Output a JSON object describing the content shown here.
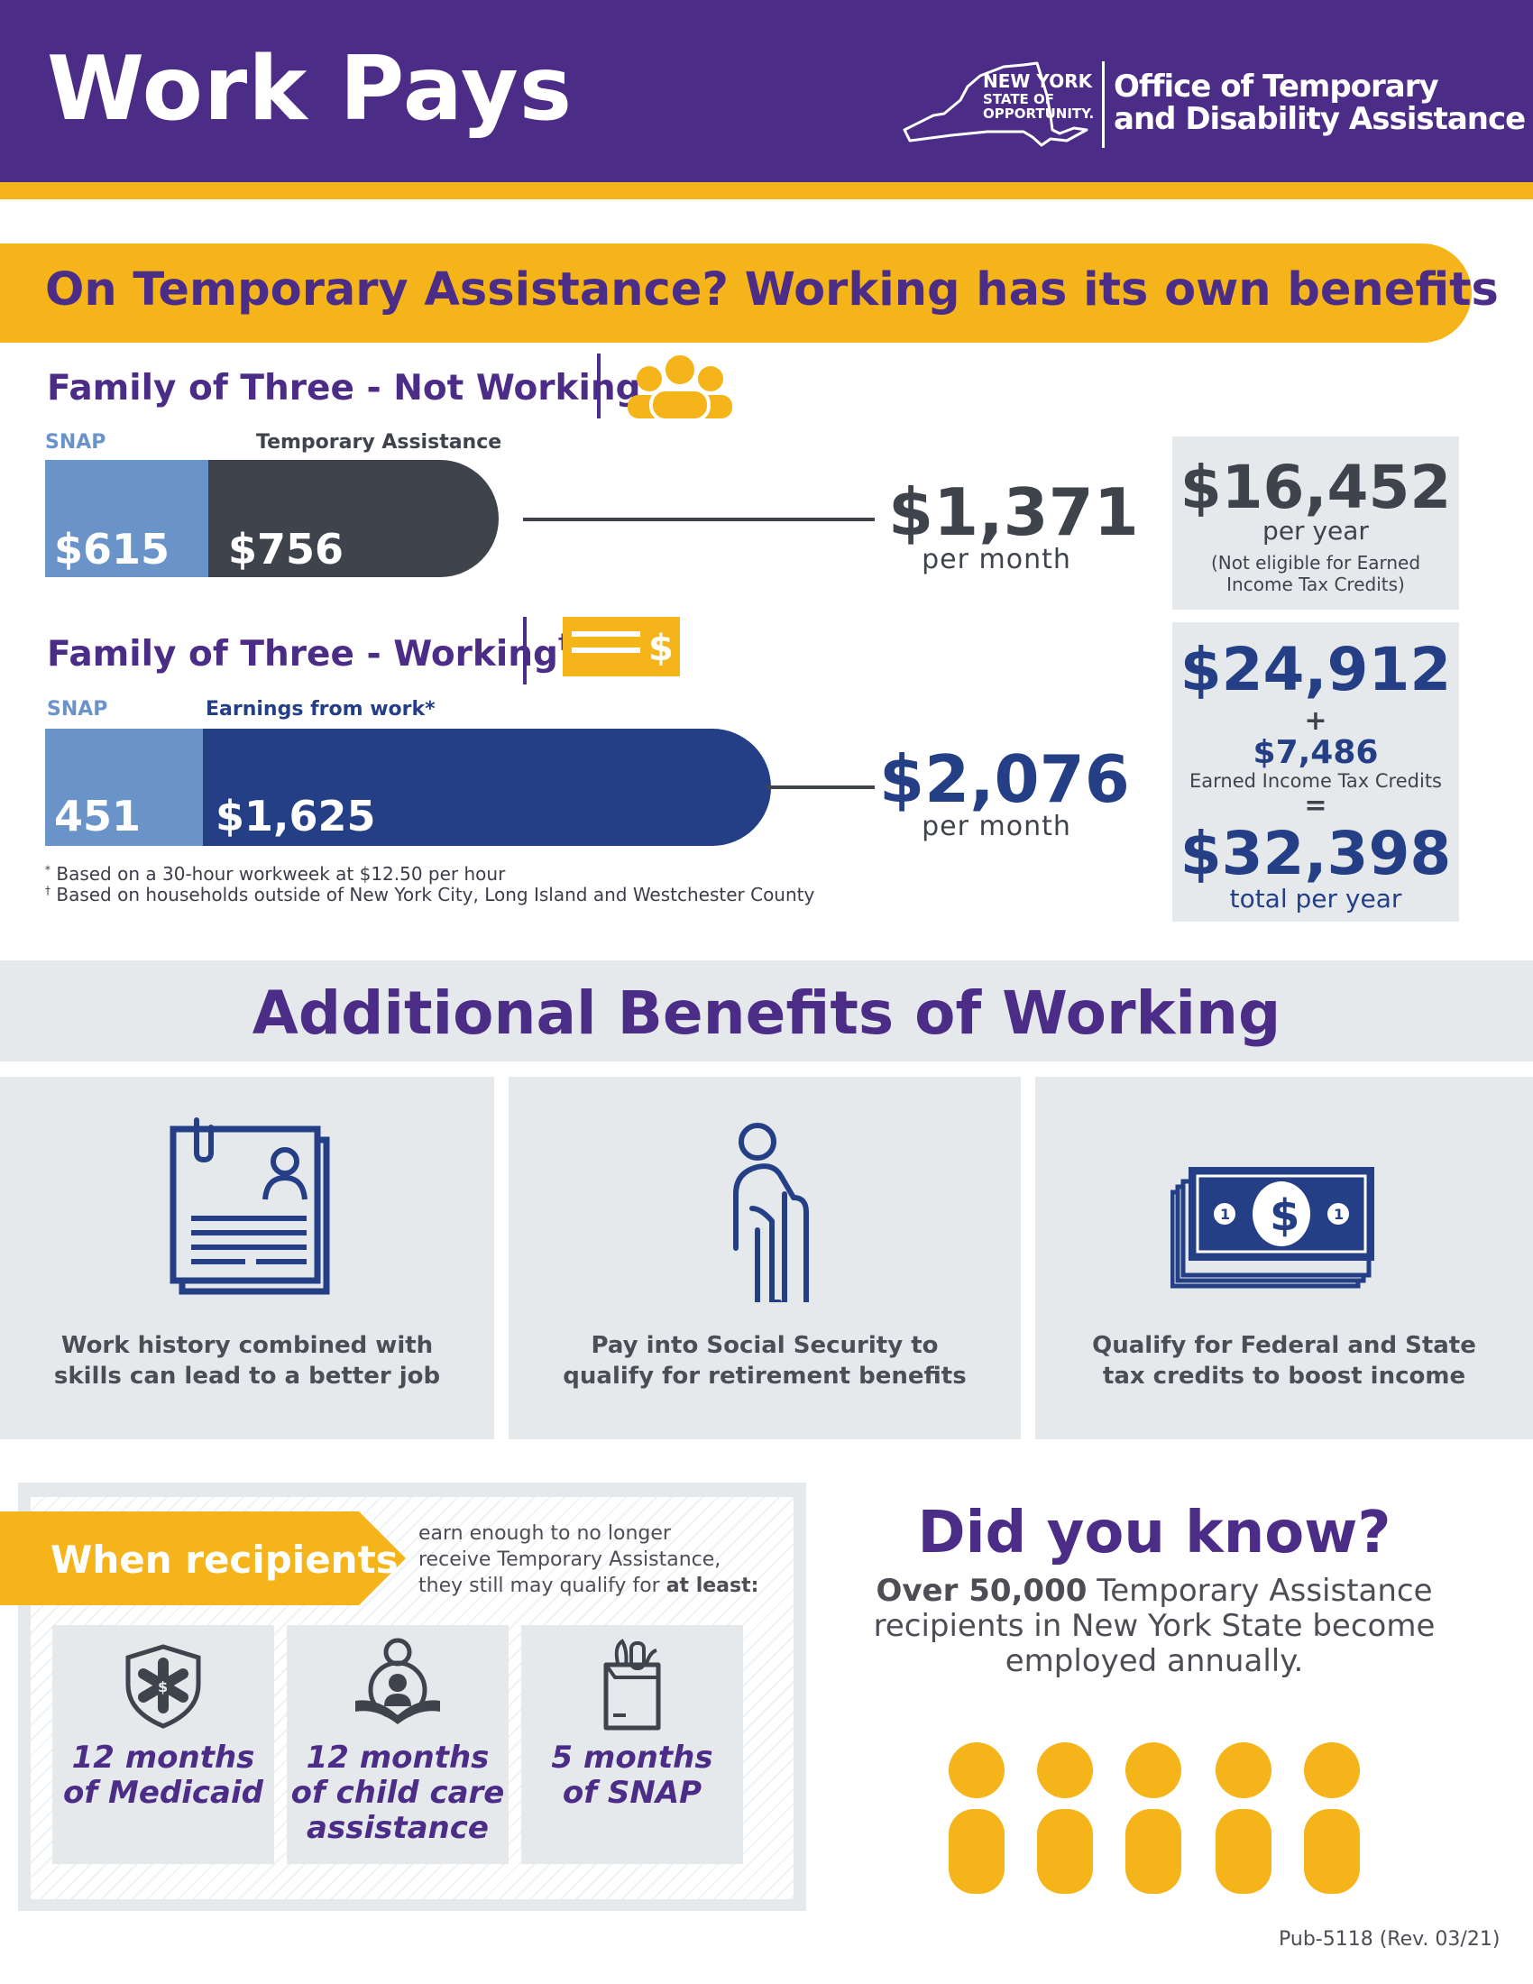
{
  "header": {
    "title": "Work Pays",
    "ny_line1": "NEW YORK",
    "ny_line2": "STATE OF",
    "ny_line3": "OPPORTUNITY.",
    "agency_line1": "Office of Temporary",
    "agency_line2": "and Disability Assistance"
  },
  "banner": {
    "text": "On Temporary Assistance? Working has its own benefits"
  },
  "not_working": {
    "title": "Family of Three - Not Working",
    "mark": "†",
    "icon": "family-icon",
    "snap_label": "SNAP",
    "ta_label": "Temporary Assistance",
    "snap_value": "$615",
    "ta_value": "$756",
    "monthly_total": "$1,371",
    "per_month": "per month",
    "snap_amount": 615,
    "ta_amount": 756
  },
  "working": {
    "title": "Family of Three - Working",
    "mark": "†",
    "icon": "paycheck-icon",
    "snap_label": "SNAP",
    "earn_label": "Earnings from work*",
    "snap_value": "451",
    "earn_value": "$1,625",
    "monthly_total": "$2,076",
    "per_month": "per month",
    "snap_amount": 451,
    "earn_amount": 1625
  },
  "footnotes": {
    "star_mark": "*",
    "star": "Based on a 30-hour workweek at $12.50 per hour",
    "dagger_mark": "†",
    "dagger": "Based on households outside of New York City, Long Island and Westchester County"
  },
  "box_not_working": {
    "amount": "$16,452",
    "per_year": "per year",
    "note_line1": "(Not eligible for Earned",
    "note_line2": "Income Tax Credits)"
  },
  "box_working": {
    "earnings": "$24,912",
    "plus": "+",
    "eitc": "$7,486",
    "eitc_label": "Earned Income Tax Credits",
    "equals": "=",
    "total": "$32,398",
    "total_label": "total per year"
  },
  "additional": {
    "title": "Additional Benefits of Working",
    "cards": [
      {
        "icon": "resume-icon",
        "line1": "Work history combined with",
        "line2": "skills can lead to a better job"
      },
      {
        "icon": "elderly-person-icon",
        "line1": "Pay into Social Security to",
        "line2": "qualify for retirement benefits"
      },
      {
        "icon": "money-stack-icon",
        "line1": "Qualify for Federal and State",
        "line2": "tax credits to boost income"
      }
    ]
  },
  "recipients": {
    "label": "When recipients",
    "body_line1": "earn enough to no longer",
    "body_line2": "receive Temporary Assistance,",
    "body_line3": "they still may qualify for ",
    "body_bold": "at least:",
    "items": [
      {
        "icon": "medical-shield-icon",
        "line1": "12 months",
        "line2": "of Medicaid",
        "line3": ""
      },
      {
        "icon": "child-reading-icon",
        "line1": "12 months",
        "line2": "of child care",
        "line3": "assistance"
      },
      {
        "icon": "grocery-bag-icon",
        "line1": "5 months",
        "line2": "of SNAP",
        "line3": ""
      }
    ]
  },
  "did_you_know": {
    "title": "Did you know?",
    "bold": "Over 50,000",
    "rest_line1": " Temporary Assistance",
    "rest_line2": "recipients in New York State become",
    "rest_line3": "employed annually."
  },
  "footer": {
    "pub": "Pub-5118 (Rev. 03/21)"
  },
  "colors": {
    "purple": "#4b2c86",
    "gold": "#f4b41a",
    "snap_blue": "#6a93c9",
    "ta_gray": "#3f434c",
    "earnings_navy": "#243f85",
    "panel_gray": "#e5e9ec"
  }
}
